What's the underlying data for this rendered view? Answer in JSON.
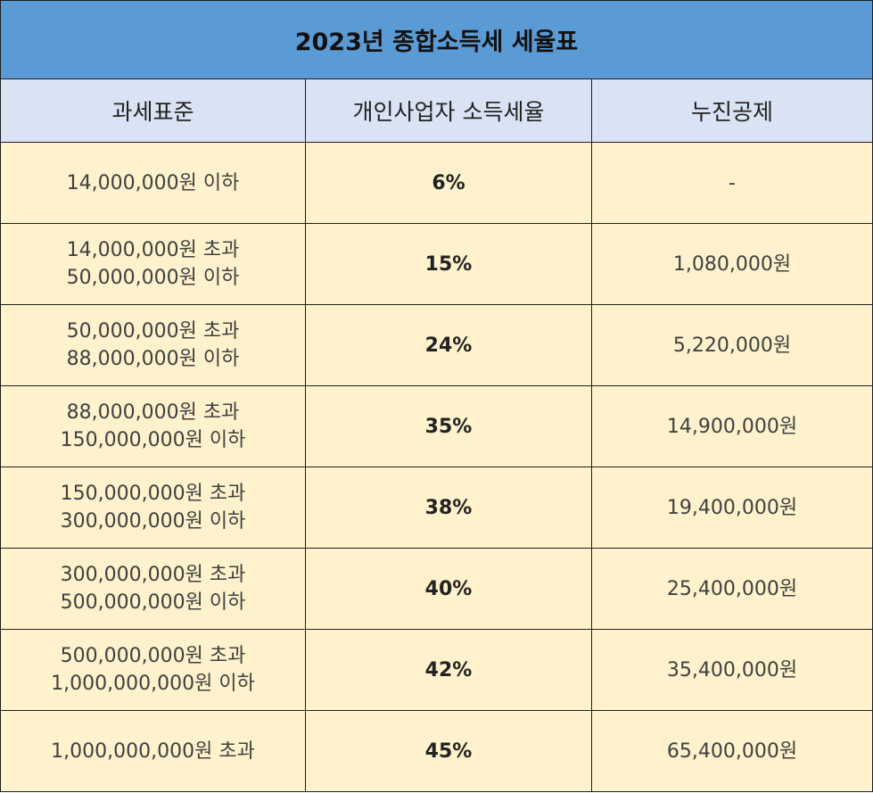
{
  "title": "2023년 종합소득세 세율표",
  "headers": [
    "과세표준",
    "개인사업자 소득세율",
    "누진공제"
  ],
  "rows": [
    {
      "bracket": [
        "14,000,000원 이하"
      ],
      "rate": "6%",
      "deduction": "-"
    },
    {
      "bracket": [
        "14,000,000원 초과",
        "50,000,000원 이하"
      ],
      "rate": "15%",
      "deduction": "1,080,000원"
    },
    {
      "bracket": [
        "50,000,000원 초과",
        "88,000,000원 이하"
      ],
      "rate": "24%",
      "deduction": "5,220,000원"
    },
    {
      "bracket": [
        "88,000,000원 초과",
        "150,000,000원 이하"
      ],
      "rate": "35%",
      "deduction": "14,900,000원"
    },
    {
      "bracket": [
        "150,000,000원 초과",
        "300,000,000원 이하"
      ],
      "rate": "38%",
      "deduction": "19,400,000원"
    },
    {
      "bracket": [
        "300,000,000원 초과",
        "500,000,000원 이하"
      ],
      "rate": "40%",
      "deduction": "25,400,000원"
    },
    {
      "bracket": [
        "500,000,000원 초과",
        "1,000,000,000원 이하"
      ],
      "rate": "42%",
      "deduction": "35,400,000원"
    },
    {
      "bracket": [
        "1,000,000,000원 초과"
      ],
      "rate": "45%",
      "deduction": "65,400,000원"
    }
  ],
  "colors": {
    "title_bg": "#5b9bd5",
    "header_bg": "#dae3f3",
    "row_bg": "#fff2cc",
    "border": "#1f1f1f"
  }
}
